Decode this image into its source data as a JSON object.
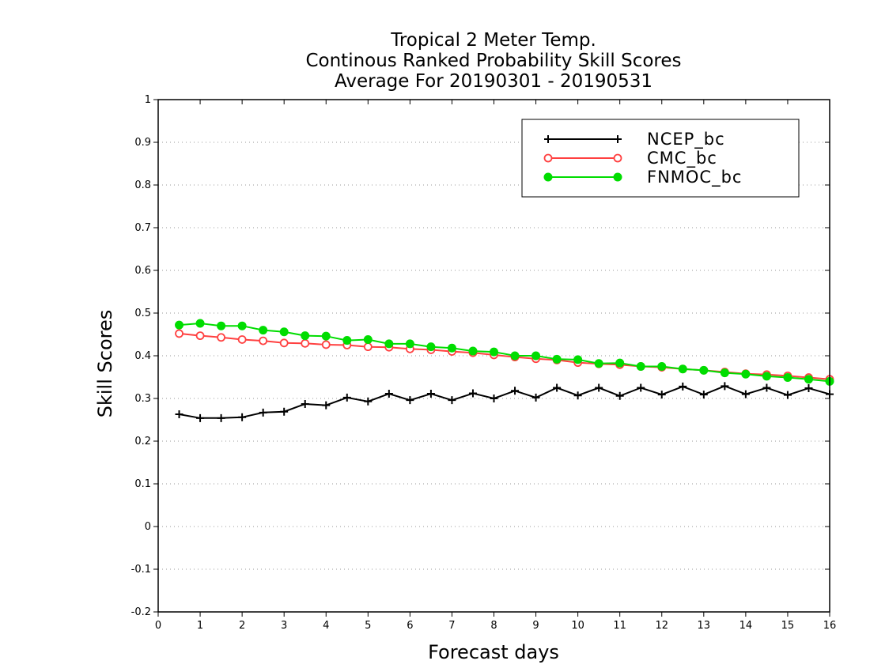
{
  "chart_data": {
    "type": "line",
    "title_lines": [
      "Tropical 2 Meter Temp.",
      "Continous Ranked Probability Skill Scores",
      "Average For 20190301 - 20190531"
    ],
    "xlabel": "Forecast days",
    "ylabel": "Skill Scores",
    "xlim": [
      0,
      16
    ],
    "ylim": [
      -0.2,
      1
    ],
    "x_ticks": [
      0,
      1,
      2,
      3,
      4,
      5,
      6,
      7,
      8,
      9,
      10,
      11,
      12,
      13,
      14,
      15,
      16
    ],
    "y_ticks": [
      -0.2,
      -0.1,
      0,
      0.1,
      0.2,
      0.3,
      0.4,
      0.5,
      0.6,
      0.7,
      0.8,
      0.9,
      1
    ],
    "y_tick_labels": [
      "-0.2",
      "-0.1",
      "0",
      "0.1",
      "0.2",
      "0.3",
      "0.4",
      "0.5",
      "0.6",
      "0.7",
      "0.8",
      "0.9",
      "1"
    ],
    "grid": "horizontal dotted",
    "legend_position": "top-right",
    "x": [
      0.5,
      1,
      1.5,
      2,
      2.5,
      3,
      3.5,
      4,
      4.5,
      5,
      5.5,
      6,
      6.5,
      7,
      7.5,
      8,
      8.5,
      9,
      9.5,
      10,
      10.5,
      11,
      11.5,
      12,
      12.5,
      13,
      13.5,
      14,
      14.5,
      15,
      15.5,
      16
    ],
    "series": [
      {
        "name": "NCEP_bc",
        "color": "#000000",
        "marker": "plus",
        "values": [
          0.263,
          0.254,
          0.254,
          0.256,
          0.267,
          0.269,
          0.287,
          0.284,
          0.302,
          0.293,
          0.311,
          0.296,
          0.311,
          0.296,
          0.312,
          0.3,
          0.318,
          0.302,
          0.325,
          0.307,
          0.325,
          0.306,
          0.325,
          0.309,
          0.328,
          0.309,
          0.329,
          0.31,
          0.325,
          0.308,
          0.324,
          0.31
        ]
      },
      {
        "name": "CMC_bc",
        "color": "#ff4040",
        "marker": "open-circle",
        "values": [
          0.452,
          0.447,
          0.443,
          0.438,
          0.435,
          0.43,
          0.429,
          0.426,
          0.425,
          0.421,
          0.42,
          0.416,
          0.414,
          0.41,
          0.407,
          0.402,
          0.397,
          0.393,
          0.39,
          0.384,
          0.381,
          0.379,
          0.375,
          0.373,
          0.369,
          0.366,
          0.362,
          0.358,
          0.356,
          0.353,
          0.349,
          0.345
        ]
      },
      {
        "name": "FNMOC_bc",
        "color": "#00dd00",
        "marker": "filled-circle",
        "values": [
          0.472,
          0.476,
          0.47,
          0.47,
          0.46,
          0.456,
          0.447,
          0.446,
          0.436,
          0.438,
          0.428,
          0.428,
          0.421,
          0.418,
          0.411,
          0.409,
          0.4,
          0.4,
          0.392,
          0.391,
          0.382,
          0.383,
          0.375,
          0.375,
          0.369,
          0.366,
          0.36,
          0.357,
          0.352,
          0.349,
          0.345,
          0.34
        ]
      }
    ]
  }
}
